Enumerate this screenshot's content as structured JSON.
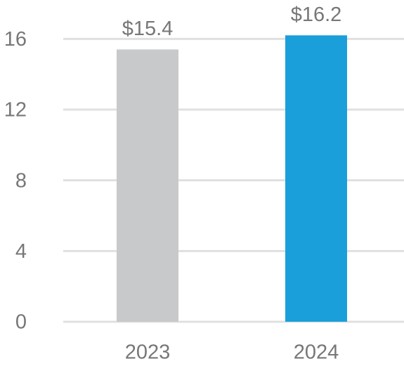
{
  "chart_data": {
    "type": "bar",
    "categories": [
      "2023",
      "2024"
    ],
    "values": [
      15.4,
      16.2
    ],
    "value_labels": [
      "$15.4",
      "$16.2"
    ],
    "colors": [
      "#c8c9cb",
      "#1a9fdb"
    ],
    "ylim": [
      0,
      18
    ],
    "yticks": [
      0,
      4,
      8,
      12,
      16
    ],
    "grid": true
  }
}
